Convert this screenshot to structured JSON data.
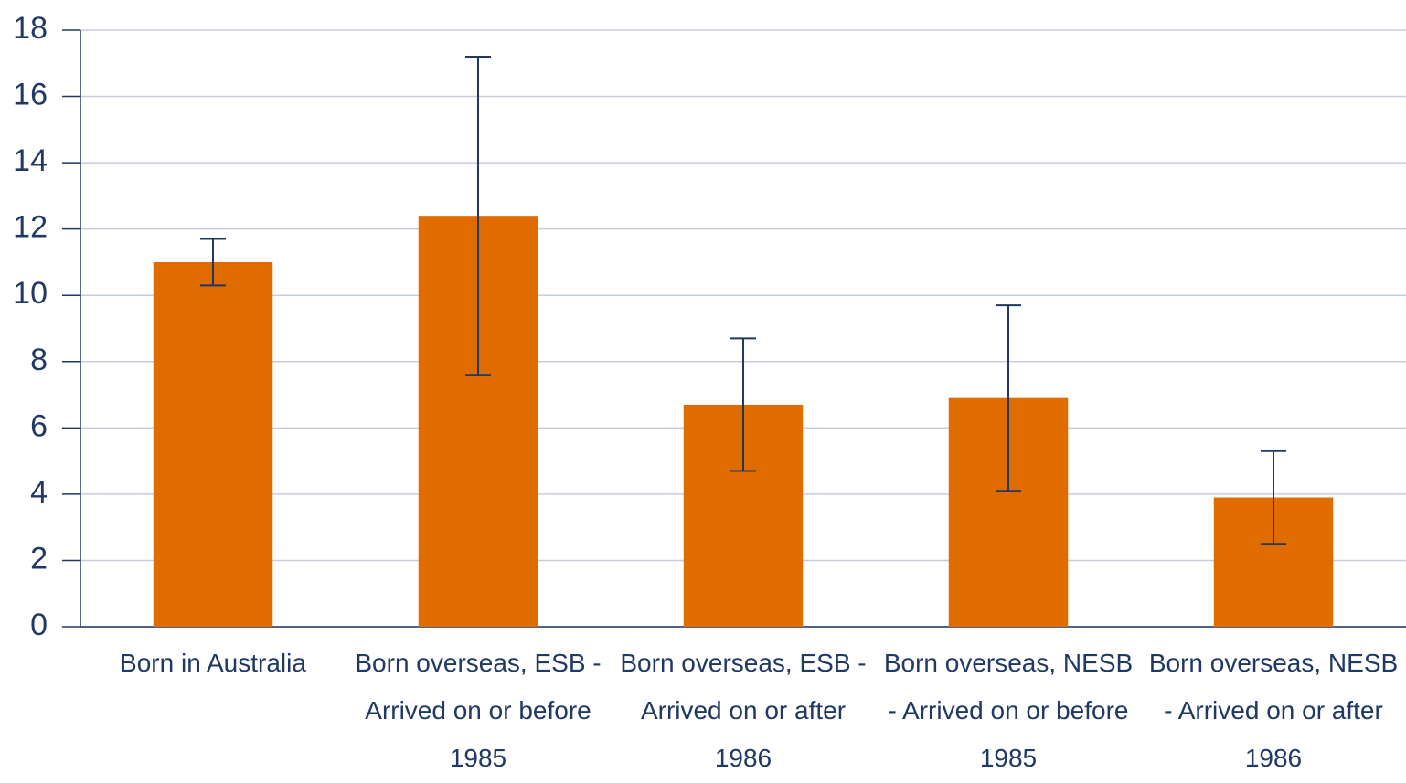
{
  "chart_data": {
    "type": "bar",
    "categories": [
      "Born in Australia",
      "Born overseas, ESB - Arrived on or before 1985",
      "Born overseas, ESB - Arrived on or after 1986",
      "Born overseas, NESB - Arrived on or before 1985",
      "Born overseas, NESB - Arrived on or after 1986"
    ],
    "values": [
      11.0,
      12.4,
      6.7,
      6.9,
      3.9
    ],
    "errors": [
      0.7,
      4.8,
      2.0,
      2.8,
      1.4
    ],
    "color": "#e06c00",
    "error_color": "#1f3864",
    "ylim": [
      0,
      18
    ],
    "yticks": [
      0,
      2,
      4,
      6,
      8,
      10,
      12,
      14,
      16,
      18
    ],
    "grid": true
  }
}
